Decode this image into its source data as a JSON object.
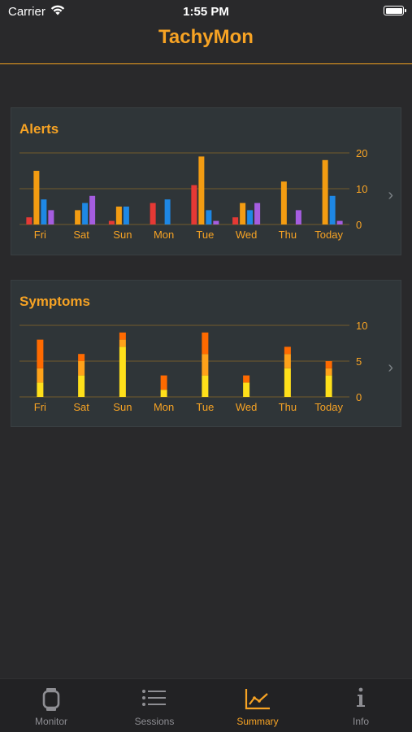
{
  "status_bar": {
    "carrier": "Carrier",
    "time": "1:55 PM"
  },
  "nav": {
    "title": "TachyMon"
  },
  "colors": {
    "accent": "#f7a324",
    "red": "#e53935",
    "orange": "#f39c12",
    "blue": "#1e88e5",
    "purple": "#a55de0",
    "yellow": "#ffe01a",
    "dark_orange": "#ff6a00"
  },
  "alerts_card": {
    "title": "Alerts"
  },
  "symptoms_card": {
    "title": "Symptoms"
  },
  "chart_data": [
    {
      "type": "bar",
      "title": "Alerts",
      "categories": [
        "Fri",
        "Sat",
        "Sun",
        "Mon",
        "Tue",
        "Wed",
        "Thu",
        "Today"
      ],
      "ylim": [
        0,
        20
      ],
      "yticks": [
        0,
        10,
        20
      ],
      "grid": true,
      "series": [
        {
          "color": "#e53935",
          "values": [
            2,
            0,
            1,
            6,
            11,
            2,
            0,
            0
          ]
        },
        {
          "color": "#f39c12",
          "values": [
            15,
            4,
            5,
            0,
            19,
            6,
            12,
            18
          ]
        },
        {
          "color": "#1e88e5",
          "values": [
            7,
            6,
            5,
            7,
            4,
            4,
            0,
            8
          ]
        },
        {
          "color": "#a55de0",
          "values": [
            4,
            8,
            0,
            0,
            1,
            6,
            4,
            1
          ]
        }
      ]
    },
    {
      "type": "bar",
      "title": "Symptoms",
      "categories": [
        "Fri",
        "Sat",
        "Sun",
        "Mon",
        "Tue",
        "Wed",
        "Thu",
        "Today"
      ],
      "ylim": [
        0,
        10
      ],
      "yticks": [
        0,
        5,
        10
      ],
      "grid": true,
      "stacked": true,
      "series": [
        {
          "color": "#ffe01a",
          "values": [
            2,
            3,
            7,
            1,
            3,
            2,
            4,
            3
          ]
        },
        {
          "color": "#ffa21a",
          "values": [
            2,
            2,
            1,
            0,
            3,
            0,
            2,
            1
          ]
        },
        {
          "color": "#ff6a00",
          "values": [
            4,
            1,
            1,
            2,
            3,
            1,
            1,
            1
          ]
        }
      ]
    }
  ],
  "tabs": [
    {
      "label": "Monitor",
      "icon": "watch-icon",
      "active": false
    },
    {
      "label": "Sessions",
      "icon": "list-icon",
      "active": false
    },
    {
      "label": "Summary",
      "icon": "chart-icon",
      "active": true
    },
    {
      "label": "Info",
      "icon": "info-icon",
      "active": false
    }
  ]
}
